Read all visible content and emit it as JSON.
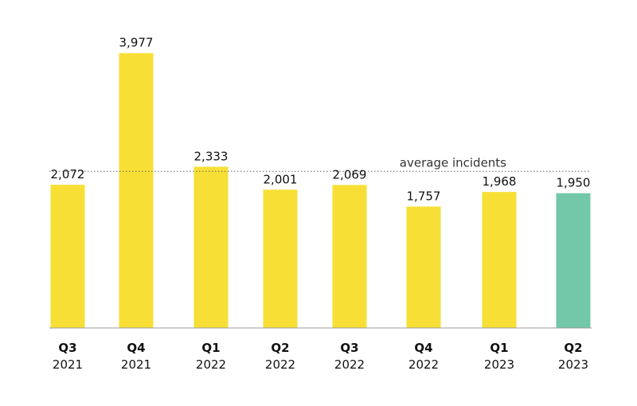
{
  "chart_data": {
    "type": "bar",
    "title": "",
    "xlabel": "",
    "ylabel": "",
    "categories": [
      {
        "quarter": "Q3",
        "year": "2021"
      },
      {
        "quarter": "Q4",
        "year": "2021"
      },
      {
        "quarter": "Q1",
        "year": "2022"
      },
      {
        "quarter": "Q2",
        "year": "2022"
      },
      {
        "quarter": "Q3",
        "year": "2022"
      },
      {
        "quarter": "Q4",
        "year": "2022"
      },
      {
        "quarter": "Q1",
        "year": "2023"
      },
      {
        "quarter": "Q2",
        "year": "2023"
      }
    ],
    "values": [
      2072,
      3977,
      2333,
      2001,
      2069,
      1757,
      1968,
      1950
    ],
    "value_labels": [
      "2,072",
      "3,977",
      "2,333",
      "2,001",
      "2,069",
      "1,757",
      "1,968",
      "1,950"
    ],
    "ylim": [
      0,
      4400
    ],
    "grid": false,
    "average": {
      "label": "average incidents",
      "value": 2266
    },
    "colors": {
      "default": "#F7DF35",
      "highlight": "#72C8A8",
      "axis": "#999999",
      "average_line": "#666666"
    },
    "highlight_index": 7
  }
}
